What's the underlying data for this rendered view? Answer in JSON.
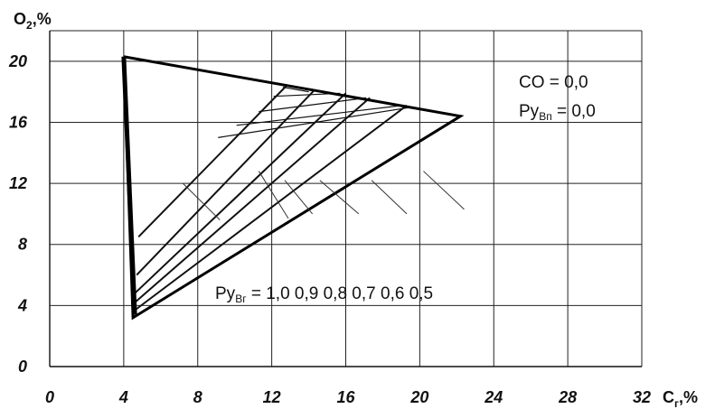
{
  "chart_data": {
    "type": "line",
    "ylabel_main": "O",
    "ylabel_sub": "2",
    "ylabel_unit": ",%",
    "xlabel_main": "C",
    "xlabel_sub": "г",
    "xlabel_unit": ",%",
    "xlim": [
      0,
      32
    ],
    "ylim": [
      0,
      22
    ],
    "x_ticks": [
      0,
      4,
      8,
      12,
      16,
      20,
      24,
      28,
      32
    ],
    "y_ticks": [
      0,
      4,
      8,
      12,
      16,
      20
    ],
    "grid": true,
    "outer_line": {
      "points": [
        [
          4.0,
          20.3
        ],
        [
          22.2,
          16.4
        ],
        [
          4.5,
          3.2
        ],
        [
          4.0,
          20.3
        ]
      ]
    },
    "series": [
      {
        "label": "1,0",
        "points": [
          [
            4.8,
            8.5
          ],
          [
            12.8,
            18.4
          ]
        ]
      },
      {
        "label": "0,9",
        "points": [
          [
            4.7,
            6.0
          ],
          [
            14.3,
            18.1
          ]
        ]
      },
      {
        "label": "0,8",
        "points": [
          [
            4.6,
            4.8
          ],
          [
            16.0,
            17.9
          ]
        ]
      },
      {
        "label": "0,7",
        "points": [
          [
            4.6,
            4.2
          ],
          [
            17.3,
            17.6
          ]
        ]
      },
      {
        "label": "0,6",
        "points": [
          [
            4.5,
            3.6
          ],
          [
            19.3,
            17.1
          ]
        ]
      },
      {
        "label": "0,5",
        "points": [
          [
            4.5,
            3.2
          ],
          [
            22.2,
            16.4
          ]
        ]
      }
    ],
    "hatch_lines": [
      [
        [
          12.6,
          18.3
        ],
        [
          14.0,
          18.0
        ]
      ],
      [
        [
          12.1,
          17.7
        ],
        [
          15.7,
          17.9
        ]
      ],
      [
        [
          11.3,
          16.7
        ],
        [
          17.1,
          17.6
        ]
      ],
      [
        [
          10.1,
          15.8
        ],
        [
          19.0,
          17.1
        ]
      ],
      [
        [
          9.1,
          15.0
        ],
        [
          19.6,
          17.0
        ]
      ]
    ],
    "annotations": {
      "co_label": "CO  = 0,0",
      "ryvp_prefix": "Ру",
      "ryvp_sub": "Вп",
      "ryvp_value": " = 0,0",
      "ryvg_prefix": "Ру",
      "ryvg_sub": "Вг",
      "ryvg_values": " = 1,0  0,9  0,8  0,7  0,6  0,5"
    },
    "leader_lines": [
      [
        [
          7.2,
          12.0
        ],
        [
          9.2,
          9.6
        ]
      ],
      [
        [
          11.3,
          12.8
        ],
        [
          12.9,
          9.7
        ]
      ],
      [
        [
          12.7,
          12.2
        ],
        [
          14.2,
          10.0
        ]
      ],
      [
        [
          14.6,
          12.2
        ],
        [
          16.7,
          10.0
        ]
      ],
      [
        [
          17.4,
          12.2
        ],
        [
          19.3,
          10.0
        ]
      ],
      [
        [
          20.2,
          12.8
        ],
        [
          22.4,
          10.3
        ]
      ]
    ]
  }
}
